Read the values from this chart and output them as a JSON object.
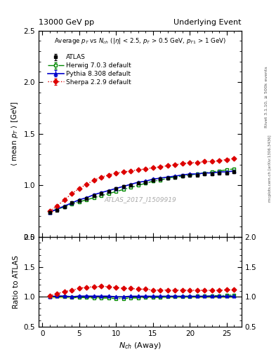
{
  "title_left": "13000 GeV pp",
  "title_right": "Underlying Event",
  "ylabel_main": "$\\langle$ mean $p_T$ $\\rangle$ [GeV]",
  "ylabel_ratio": "Ratio to ATLAS",
  "xlabel": "$N_{ch}$ (Away)",
  "annotation": "Average $p_T$ vs $N_{ch}$ ($|\\eta|$ < 2.5, $p_T$ > 0.5 GeV, $p_{T1}$ > 1 GeV)",
  "watermark": "ATLAS_2017_I1509919",
  "right_label_top": "Rivet 3.1.10, ≥ 500k events",
  "right_label_bottom": "mcplots.cern.ch [arXiv:1306.3436]",
  "ylim_main": [
    0.5,
    2.5
  ],
  "ylim_ratio": [
    0.5,
    2.0
  ],
  "xlim": [
    -0.5,
    27
  ],
  "yticks_main": [
    0.5,
    1.0,
    1.5,
    2.0,
    2.5
  ],
  "yticks_ratio": [
    0.5,
    1.0,
    1.5,
    2.0
  ],
  "xticks": [
    0,
    5,
    10,
    15,
    20,
    25
  ],
  "nch_atlas": [
    1,
    2,
    3,
    4,
    5,
    6,
    7,
    8,
    9,
    10,
    11,
    12,
    13,
    14,
    15,
    16,
    17,
    18,
    19,
    20,
    21,
    22,
    23,
    24,
    25,
    26
  ],
  "pt_atlas": [
    0.74,
    0.76,
    0.79,
    0.83,
    0.85,
    0.87,
    0.9,
    0.92,
    0.94,
    0.97,
    0.99,
    1.0,
    1.02,
    1.03,
    1.05,
    1.06,
    1.07,
    1.08,
    1.09,
    1.1,
    1.1,
    1.11,
    1.11,
    1.12,
    1.12,
    1.13
  ],
  "nch_herwig": [
    1,
    2,
    3,
    4,
    5,
    6,
    7,
    8,
    9,
    10,
    11,
    12,
    13,
    14,
    15,
    16,
    17,
    18,
    19,
    20,
    21,
    22,
    23,
    24,
    25,
    26
  ],
  "pt_herwig": [
    0.74,
    0.77,
    0.79,
    0.82,
    0.84,
    0.86,
    0.88,
    0.9,
    0.92,
    0.94,
    0.96,
    0.98,
    1.0,
    1.02,
    1.04,
    1.05,
    1.07,
    1.08,
    1.09,
    1.1,
    1.11,
    1.12,
    1.13,
    1.14,
    1.15,
    1.16
  ],
  "nch_pythia": [
    1,
    2,
    3,
    4,
    5,
    6,
    7,
    8,
    9,
    10,
    11,
    12,
    13,
    14,
    15,
    16,
    17,
    18,
    19,
    20,
    21,
    22,
    23,
    24,
    25,
    26
  ],
  "pt_pythia": [
    0.74,
    0.77,
    0.8,
    0.83,
    0.86,
    0.88,
    0.91,
    0.93,
    0.95,
    0.97,
    0.99,
    1.01,
    1.03,
    1.04,
    1.06,
    1.07,
    1.08,
    1.09,
    1.1,
    1.11,
    1.11,
    1.12,
    1.12,
    1.13,
    1.13,
    1.14
  ],
  "nch_sherpa": [
    1,
    2,
    3,
    4,
    5,
    6,
    7,
    8,
    9,
    10,
    11,
    12,
    13,
    14,
    15,
    16,
    17,
    18,
    19,
    20,
    21,
    22,
    23,
    24,
    25,
    26
  ],
  "pt_sherpa": [
    0.75,
    0.8,
    0.86,
    0.92,
    0.97,
    1.01,
    1.05,
    1.08,
    1.1,
    1.12,
    1.13,
    1.14,
    1.15,
    1.16,
    1.17,
    1.18,
    1.19,
    1.2,
    1.21,
    1.22,
    1.22,
    1.23,
    1.23,
    1.24,
    1.25,
    1.26
  ],
  "color_atlas": "#000000",
  "color_herwig": "#008800",
  "color_pythia": "#0000cc",
  "color_sherpa": "#dd0000",
  "atlas_err": 0.012,
  "herwig_err": 0.008,
  "pythia_err": 0.008,
  "sherpa_err": 0.008
}
